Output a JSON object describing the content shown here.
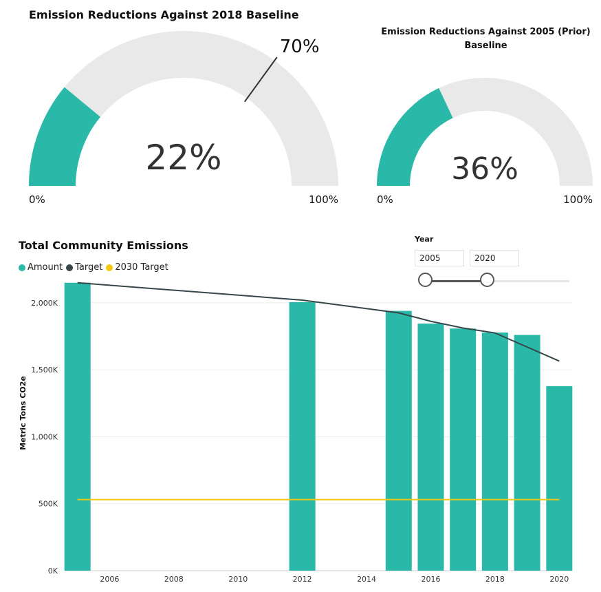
{
  "gauges": [
    {
      "title": "Emission Reductions Against 2018 Baseline",
      "value": 22,
      "value_label": "22%",
      "target": 70,
      "target_label": "70%",
      "min_label": "0%",
      "max_label": "100%",
      "fill_color": "#2ab9a9",
      "track_color": "#e9e9e9"
    },
    {
      "title": "Emission Reductions Against 2005 (Prior) Baseline",
      "value": 36,
      "value_label": "36%",
      "min_label": "0%",
      "max_label": "100%",
      "fill_color": "#2ab9a9",
      "track_color": "#e9e9e9"
    }
  ],
  "slicer": {
    "label": "Year",
    "start": "2005",
    "end": "2020"
  },
  "chart_data": {
    "type": "bar",
    "title": "Total Community Emissions",
    "ylabel": "Metric Tons CO2e",
    "xlabel": "",
    "ylim": [
      0,
      2200000
    ],
    "xlim": [
      2004.6,
      2020.4
    ],
    "y_ticks": [
      0,
      500000,
      1000000,
      1500000,
      2000000
    ],
    "y_tick_labels": [
      "0K",
      "500K",
      "1,000K",
      "1,500K",
      "2,000K"
    ],
    "x_ticks": [
      2006,
      2008,
      2010,
      2012,
      2014,
      2016,
      2018,
      2020
    ],
    "x_tick_labels": [
      "2006",
      "2008",
      "2010",
      "2012",
      "2014",
      "2016",
      "2018",
      "2020"
    ],
    "grid": true,
    "legend": {
      "position": "top-left",
      "items": [
        {
          "label": "Amount",
          "color": "#2ab9a9"
        },
        {
          "label": "Target",
          "color": "#374649"
        },
        {
          "label": "2030 Target",
          "color": "#f2c80f"
        }
      ]
    },
    "bars": {
      "name": "Amount",
      "color": "#2ab9a9",
      "x": [
        2005,
        2012,
        2015,
        2016,
        2017,
        2018,
        2019,
        2020
      ],
      "values": [
        2150000,
        2005000,
        1940000,
        1845000,
        1808000,
        1778000,
        1760000,
        1378000
      ]
    },
    "target": {
      "name": "Target",
      "color": "#374649",
      "x": [
        2005,
        2012,
        2015,
        2016,
        2017,
        2018,
        2019,
        2020
      ],
      "values": [
        2150000,
        2020000,
        1925000,
        1862000,
        1812000,
        1775000,
        1670000,
        1565000
      ]
    },
    "target_2030": {
      "name": "2030 Target",
      "color": "#f2c80f",
      "x": [
        2005,
        2020
      ],
      "values": [
        531000,
        531000
      ]
    }
  }
}
